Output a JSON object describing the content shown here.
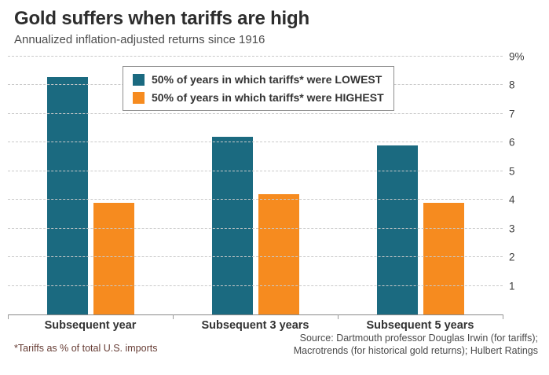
{
  "page": {
    "title": "Gold suffers when tariffs are high",
    "subtitle": "Annualized inflation-adjusted returns since 1916",
    "footnote": "*Tariffs as % of total U.S. imports",
    "source_lines": [
      "Source: Dartmouth professor Douglas Irwin (for tariffs);",
      "Macrotrends (for historical gold returns); Hulbert Ratings"
    ]
  },
  "colors": {
    "lowest": "#1b6a80",
    "highest": "#f68b1f",
    "grid": "#c9c9c9",
    "axis": "#8a8a8a"
  },
  "chart_data": {
    "type": "bar",
    "title": "Gold suffers when tariffs are high",
    "subtitle": "Annualized inflation-adjusted returns since 1916",
    "categories": [
      "Subsequent year",
      "Subsequent 3 years",
      "Subsequent 5 years"
    ],
    "series": [
      {
        "name": "50% of years in which tariffs* were LOWEST",
        "color_key": "lowest",
        "values": [
          8.3,
          6.2,
          5.9
        ]
      },
      {
        "name": "50% of years in which tariffs* were HIGHEST",
        "color_key": "highest",
        "values": [
          3.9,
          4.2,
          3.9
        ]
      }
    ],
    "ylim": [
      0,
      9
    ],
    "yticks": [
      1,
      2,
      3,
      4,
      5,
      6,
      7,
      8,
      9
    ],
    "ytick_labels": [
      "1",
      "2",
      "3",
      "4",
      "5",
      "6",
      "7",
      "8",
      "9%"
    ],
    "ylabel_side": "right",
    "grid": "dashed-horizontal",
    "legend_position": "top-center"
  }
}
